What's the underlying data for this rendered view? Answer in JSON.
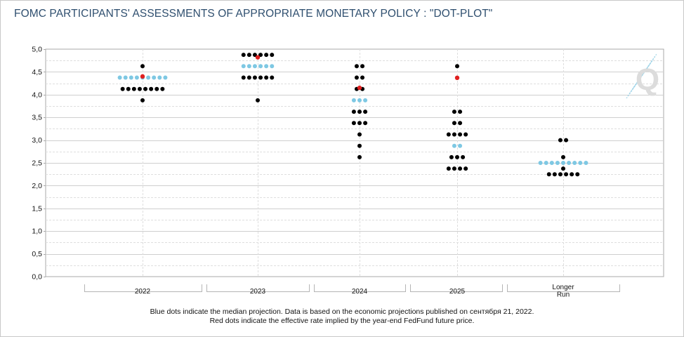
{
  "title": "FOMC PARTICIPANTS' ASSESSMENTS OF APPROPRIATE MONETARY POLICY : \"DOT-PLOT\"",
  "notes": {
    "line1": "Blue dots indicate the median projection. Data is based on the economic projections published on сентября 21, 2022.",
    "line2": "Red dots indicate the effective rate implied by the year-end FedFund future price."
  },
  "logo_text": "Q",
  "colors": {
    "median": "#7ec8e3",
    "implied": "#e02020",
    "participant": "#000000",
    "title": "#2f4f6f",
    "grid": "#d3d3d3"
  },
  "chart_data": {
    "type": "scatter",
    "title": "FOMC PARTICIPANTS' ASSESSMENTS OF APPROPRIATE MONETARY POLICY : \"DOT-PLOT\"",
    "ylim": [
      0,
      5
    ],
    "yticks": [
      "0,0",
      "0,5",
      "1,0",
      "1,5",
      "2,0",
      "2,5",
      "3,0",
      "3,5",
      "4,0",
      "4,5",
      "5,0"
    ],
    "grid": true,
    "categories": [
      {
        "label": "2022",
        "groups": [
          {
            "rate": 4.625,
            "count": 1
          },
          {
            "rate": 4.375,
            "count": 9,
            "median": true
          },
          {
            "rate": 4.125,
            "count": 8
          },
          {
            "rate": 3.875,
            "count": 1
          }
        ],
        "implied": 4.4
      },
      {
        "label": "2023",
        "groups": [
          {
            "rate": 4.875,
            "count": 6
          },
          {
            "rate": 4.625,
            "count": 6,
            "median": true
          },
          {
            "rate": 4.375,
            "count": 6
          },
          {
            "rate": 3.875,
            "count": 1
          }
        ],
        "implied": 4.82
      },
      {
        "label": "2024",
        "groups": [
          {
            "rate": 4.625,
            "count": 2
          },
          {
            "rate": 4.375,
            "count": 2
          },
          {
            "rate": 4.125,
            "count": 2
          },
          {
            "rate": 3.875,
            "count": 3,
            "median": true
          },
          {
            "rate": 3.625,
            "count": 3
          },
          {
            "rate": 3.375,
            "count": 3
          },
          {
            "rate": 3.125,
            "count": 1
          },
          {
            "rate": 2.875,
            "count": 1
          },
          {
            "rate": 2.625,
            "count": 1
          }
        ],
        "implied": 4.15
      },
      {
        "label": "2025",
        "groups": [
          {
            "rate": 4.625,
            "count": 1
          },
          {
            "rate": 3.625,
            "count": 2
          },
          {
            "rate": 3.375,
            "count": 2
          },
          {
            "rate": 3.125,
            "count": 4
          },
          {
            "rate": 2.875,
            "count": 2,
            "median": true
          },
          {
            "rate": 2.625,
            "count": 3
          },
          {
            "rate": 2.375,
            "count": 4
          }
        ],
        "implied": 4.37
      },
      {
        "label": "Longer Run",
        "label_lines": [
          "Longer",
          "Run"
        ],
        "groups": [
          {
            "rate": 3.0,
            "count": 2
          },
          {
            "rate": 2.625,
            "count": 1
          },
          {
            "rate": 2.5,
            "count": 9,
            "median": true
          },
          {
            "rate": 2.375,
            "count": 1
          },
          {
            "rate": 2.25,
            "count": 6
          }
        ],
        "implied": null
      }
    ]
  }
}
